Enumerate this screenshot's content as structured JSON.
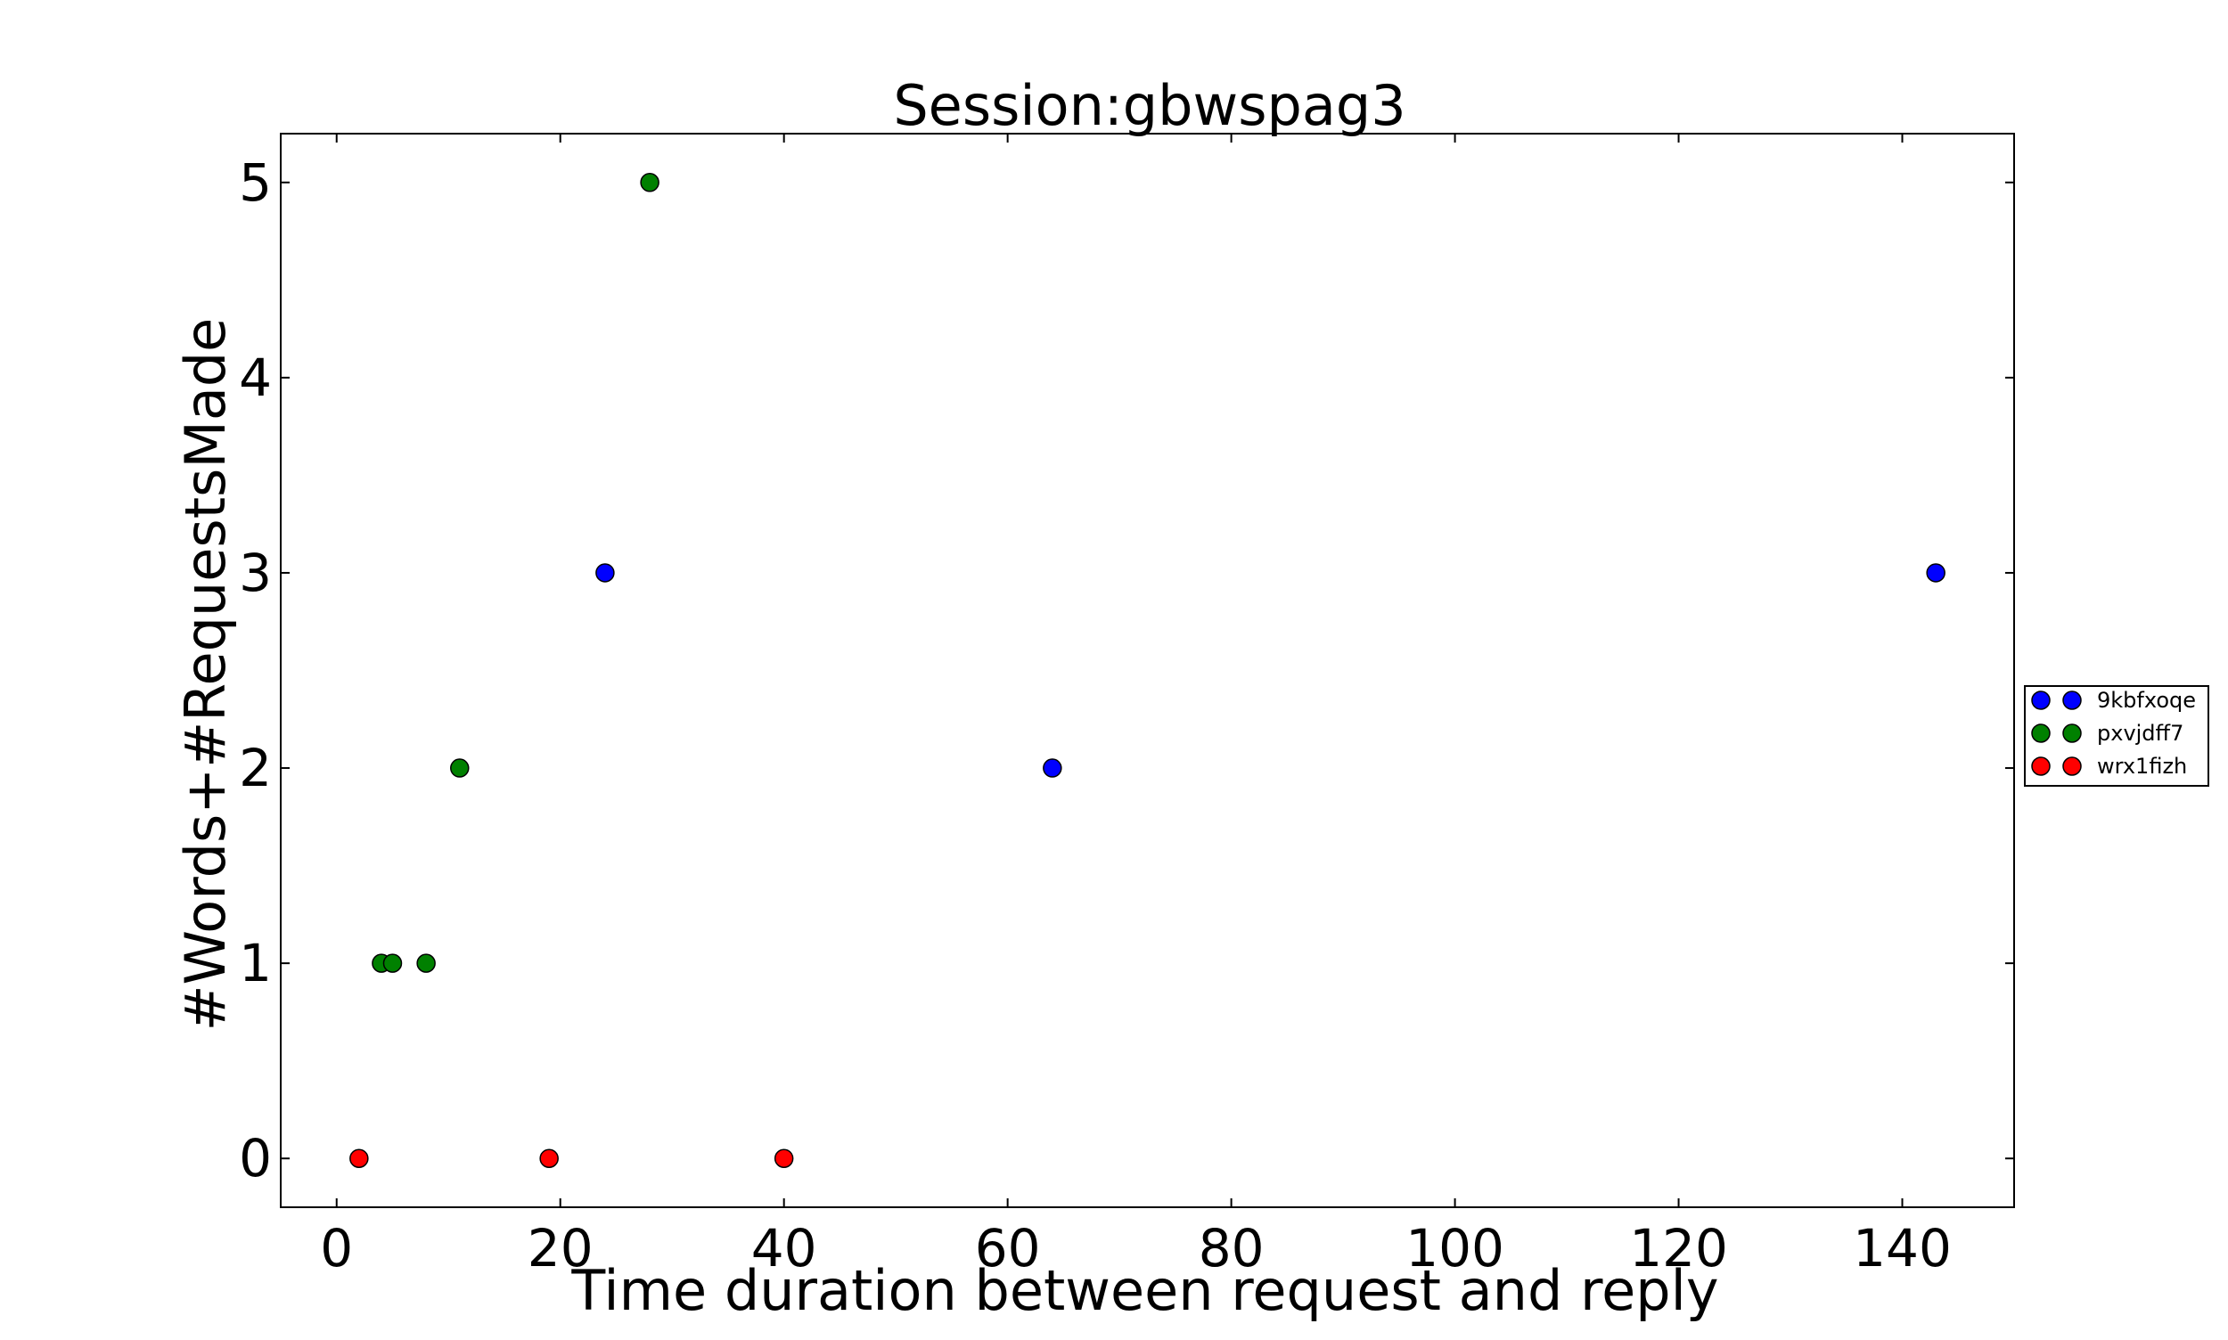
{
  "chart_data": {
    "type": "scatter",
    "title": "Session:gbwspag3",
    "xlabel": "Time duration between request and reply",
    "ylabel": "#Words+#RequestsMade",
    "xlim": [
      -5,
      150
    ],
    "ylim": [
      -0.25,
      5.25
    ],
    "xticks": [
      0,
      20,
      40,
      60,
      80,
      100,
      120,
      140
    ],
    "yticks": [
      0,
      1,
      2,
      3,
      4,
      5
    ],
    "grid": false,
    "legend_position": "right outside",
    "series": [
      {
        "name": "9kbfxoqe",
        "color": "#0000ff",
        "points": [
          [
            24,
            3
          ],
          [
            64,
            2
          ],
          [
            143,
            3
          ]
        ]
      },
      {
        "name": "pxvjdff7",
        "color": "#008000",
        "points": [
          [
            4,
            1
          ],
          [
            5,
            1
          ],
          [
            8,
            1
          ],
          [
            11,
            2
          ],
          [
            28,
            5
          ]
        ]
      },
      {
        "name": "wrx1fizh",
        "color": "#ff0000",
        "points": [
          [
            2,
            0
          ],
          [
            19,
            0
          ],
          [
            40,
            0
          ]
        ]
      }
    ]
  }
}
